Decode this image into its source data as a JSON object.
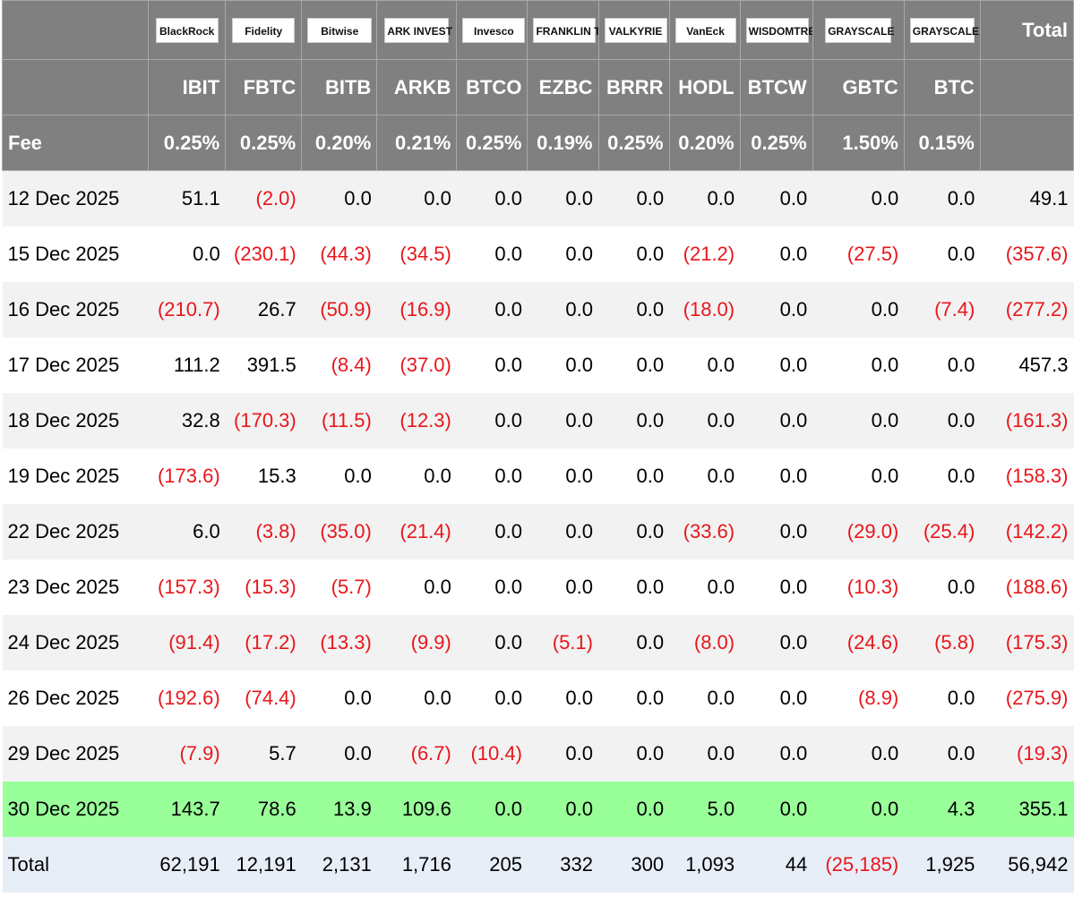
{
  "header": {
    "total_label": "Total",
    "fee_label": "Fee",
    "funds": [
      {
        "logo": "BlackRock",
        "ticker": "IBIT",
        "fee": "0.25%"
      },
      {
        "logo": "Fidelity",
        "ticker": "FBTC",
        "fee": "0.25%"
      },
      {
        "logo": "Bitwise",
        "ticker": "BITB",
        "fee": "0.20%"
      },
      {
        "logo": "ARK INVEST",
        "ticker": "ARKB",
        "fee": "0.21%"
      },
      {
        "logo": "Invesco",
        "ticker": "BTCO",
        "fee": "0.25%"
      },
      {
        "logo": "FRANKLIN TEMPLETON",
        "ticker": "EZBC",
        "fee": "0.19%"
      },
      {
        "logo": "VALKYRIE",
        "ticker": "BRRR",
        "fee": "0.25%"
      },
      {
        "logo": "VanEck",
        "ticker": "HODL",
        "fee": "0.20%"
      },
      {
        "logo": "WISDOMTREE",
        "ticker": "BTCW",
        "fee": "0.25%"
      },
      {
        "logo": "GRAYSCALE",
        "ticker": "GBTC",
        "fee": "1.50%"
      },
      {
        "logo": "GRAYSCALE",
        "ticker": "BTC",
        "fee": "0.15%"
      }
    ]
  },
  "rows": [
    {
      "date": "12 Dec 2025",
      "values": [
        "51.1",
        "(2.0)",
        "0.0",
        "0.0",
        "0.0",
        "0.0",
        "0.0",
        "0.0",
        "0.0",
        "0.0",
        "0.0",
        "49.1"
      ]
    },
    {
      "date": "15 Dec 2025",
      "values": [
        "0.0",
        "(230.1)",
        "(44.3)",
        "(34.5)",
        "0.0",
        "0.0",
        "0.0",
        "(21.2)",
        "0.0",
        "(27.5)",
        "0.0",
        "(357.6)"
      ]
    },
    {
      "date": "16 Dec 2025",
      "values": [
        "(210.7)",
        "26.7",
        "(50.9)",
        "(16.9)",
        "0.0",
        "0.0",
        "0.0",
        "(18.0)",
        "0.0",
        "0.0",
        "(7.4)",
        "(277.2)"
      ]
    },
    {
      "date": "17 Dec 2025",
      "values": [
        "111.2",
        "391.5",
        "(8.4)",
        "(37.0)",
        "0.0",
        "0.0",
        "0.0",
        "0.0",
        "0.0",
        "0.0",
        "0.0",
        "457.3"
      ]
    },
    {
      "date": "18 Dec 2025",
      "values": [
        "32.8",
        "(170.3)",
        "(11.5)",
        "(12.3)",
        "0.0",
        "0.0",
        "0.0",
        "0.0",
        "0.0",
        "0.0",
        "0.0",
        "(161.3)"
      ]
    },
    {
      "date": "19 Dec 2025",
      "values": [
        "(173.6)",
        "15.3",
        "0.0",
        "0.0",
        "0.0",
        "0.0",
        "0.0",
        "0.0",
        "0.0",
        "0.0",
        "0.0",
        "(158.3)"
      ]
    },
    {
      "date": "22 Dec 2025",
      "values": [
        "6.0",
        "(3.8)",
        "(35.0)",
        "(21.4)",
        "0.0",
        "0.0",
        "0.0",
        "(33.6)",
        "0.0",
        "(29.0)",
        "(25.4)",
        "(142.2)"
      ]
    },
    {
      "date": "23 Dec 2025",
      "values": [
        "(157.3)",
        "(15.3)",
        "(5.7)",
        "0.0",
        "0.0",
        "0.0",
        "0.0",
        "0.0",
        "0.0",
        "(10.3)",
        "0.0",
        "(188.6)"
      ]
    },
    {
      "date": "24 Dec 2025",
      "values": [
        "(91.4)",
        "(17.2)",
        "(13.3)",
        "(9.9)",
        "0.0",
        "(5.1)",
        "0.0",
        "(8.0)",
        "0.0",
        "(24.6)",
        "(5.8)",
        "(175.3)"
      ]
    },
    {
      "date": "26 Dec 2025",
      "values": [
        "(192.6)",
        "(74.4)",
        "0.0",
        "0.0",
        "0.0",
        "0.0",
        "0.0",
        "0.0",
        "0.0",
        "(8.9)",
        "0.0",
        "(275.9)"
      ]
    },
    {
      "date": "29 Dec 2025",
      "values": [
        "(7.9)",
        "5.7",
        "0.0",
        "(6.7)",
        "(10.4)",
        "0.0",
        "0.0",
        "0.0",
        "0.0",
        "0.0",
        "0.0",
        "(19.3)"
      ]
    },
    {
      "date": "30 Dec 2025",
      "highlight": true,
      "values": [
        "143.7",
        "78.6",
        "13.9",
        "109.6",
        "0.0",
        "0.0",
        "0.0",
        "5.0",
        "0.0",
        "0.0",
        "4.3",
        "355.1"
      ]
    }
  ],
  "total_row": {
    "label": "Total",
    "values": [
      "62,191",
      "12,191",
      "2,131",
      "1,716",
      "205",
      "332",
      "300",
      "1,093",
      "44",
      "(25,185)",
      "1,925",
      "56,942"
    ]
  },
  "colors": {
    "header_bg": "#808080",
    "negative": "#e8161b",
    "highlight": "#99ff99",
    "stripe": "#f2f2f2",
    "total_bg": "#e8eef8"
  }
}
